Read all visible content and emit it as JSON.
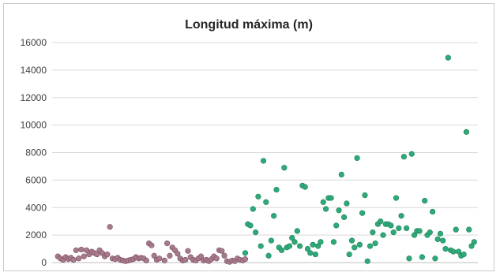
{
  "chart_data": {
    "type": "scatter",
    "title": "Longitud máxima (m)",
    "xlabel": "",
    "ylabel": "",
    "ylim": [
      0,
      16000
    ],
    "yticks": [
      0,
      2000,
      4000,
      6000,
      8000,
      10000,
      12000,
      14000,
      16000
    ],
    "xlim": [
      0,
      160
    ],
    "grid": true,
    "legend": "none",
    "series": [
      {
        "color": "#a87a8e",
        "edge_color": "#7a4e61",
        "points": [
          [
            1,
            450
          ],
          [
            2,
            300
          ],
          [
            3,
            200
          ],
          [
            4,
            400
          ],
          [
            5,
            250
          ],
          [
            6,
            350
          ],
          [
            7,
            200
          ],
          [
            8,
            900
          ],
          [
            9,
            300
          ],
          [
            10,
            950
          ],
          [
            11,
            450
          ],
          [
            12,
            900
          ],
          [
            13,
            600
          ],
          [
            14,
            800
          ],
          [
            15,
            700
          ],
          [
            16,
            600
          ],
          [
            17,
            900
          ],
          [
            18,
            700
          ],
          [
            19,
            450
          ],
          [
            20,
            600
          ],
          [
            21,
            2600
          ],
          [
            22,
            300
          ],
          [
            23,
            250
          ],
          [
            24,
            350
          ],
          [
            25,
            200
          ],
          [
            26,
            150
          ],
          [
            27,
            100
          ],
          [
            28,
            150
          ],
          [
            29,
            200
          ],
          [
            30,
            250
          ],
          [
            31,
            400
          ],
          [
            32,
            300
          ],
          [
            33,
            350
          ],
          [
            34,
            300
          ],
          [
            35,
            150
          ],
          [
            36,
            1400
          ],
          [
            37,
            1250
          ],
          [
            38,
            500
          ],
          [
            39,
            200
          ],
          [
            40,
            300
          ],
          [
            42,
            150
          ],
          [
            43,
            1400
          ],
          [
            44,
            500
          ],
          [
            45,
            1100
          ],
          [
            46,
            900
          ],
          [
            47,
            650
          ],
          [
            48,
            300
          ],
          [
            49,
            150
          ],
          [
            50,
            200
          ],
          [
            51,
            850
          ],
          [
            52,
            400
          ],
          [
            53,
            200
          ],
          [
            54,
            150
          ],
          [
            55,
            300
          ],
          [
            56,
            450
          ],
          [
            57,
            150
          ],
          [
            58,
            200
          ],
          [
            59,
            100
          ],
          [
            60,
            250
          ],
          [
            61,
            450
          ],
          [
            62,
            300
          ],
          [
            63,
            900
          ],
          [
            64,
            850
          ],
          [
            65,
            500
          ],
          [
            66,
            100
          ],
          [
            67,
            50
          ],
          [
            68,
            150
          ],
          [
            69,
            100
          ],
          [
            70,
            300
          ],
          [
            71,
            200
          ],
          [
            72,
            150
          ],
          [
            73,
            250
          ]
        ]
      },
      {
        "color": "#2eaa78",
        "edge_color": "#1d7f58",
        "points": [
          [
            73,
            700
          ],
          [
            74,
            2800
          ],
          [
            75,
            2700
          ],
          [
            76,
            3900
          ],
          [
            77,
            2200
          ],
          [
            78,
            4800
          ],
          [
            79,
            1200
          ],
          [
            80,
            7400
          ],
          [
            81,
            4400
          ],
          [
            82,
            500
          ],
          [
            83,
            1600
          ],
          [
            84,
            3400
          ],
          [
            85,
            5300
          ],
          [
            86,
            1100
          ],
          [
            87,
            900
          ],
          [
            88,
            6900
          ],
          [
            89,
            1100
          ],
          [
            90,
            1200
          ],
          [
            91,
            1800
          ],
          [
            92,
            1500
          ],
          [
            93,
            2300
          ],
          [
            94,
            1200
          ],
          [
            95,
            5600
          ],
          [
            96,
            5500
          ],
          [
            97,
            1000
          ],
          [
            98,
            700
          ],
          [
            99,
            1300
          ],
          [
            100,
            600
          ],
          [
            101,
            1200
          ],
          [
            102,
            1500
          ],
          [
            103,
            4400
          ],
          [
            104,
            3900
          ],
          [
            105,
            4700
          ],
          [
            106,
            4700
          ],
          [
            107,
            1500
          ],
          [
            108,
            2700
          ],
          [
            109,
            3800
          ],
          [
            110,
            6400
          ],
          [
            111,
            3300
          ],
          [
            112,
            4300
          ],
          [
            113,
            600
          ],
          [
            114,
            1600
          ],
          [
            115,
            1100
          ],
          [
            116,
            7600
          ],
          [
            117,
            1300
          ],
          [
            118,
            3600
          ],
          [
            119,
            4900
          ],
          [
            120,
            100
          ],
          [
            121,
            1200
          ],
          [
            122,
            2200
          ],
          [
            123,
            1400
          ],
          [
            124,
            2800
          ],
          [
            125,
            3000
          ],
          [
            126,
            2000
          ],
          [
            127,
            2800
          ],
          [
            128,
            2800
          ],
          [
            129,
            2700
          ],
          [
            130,
            2200
          ],
          [
            131,
            4700
          ],
          [
            132,
            2500
          ],
          [
            133,
            3400
          ],
          [
            134,
            7700
          ],
          [
            135,
            2500
          ],
          [
            136,
            300
          ],
          [
            137,
            7900
          ],
          [
            138,
            2000
          ],
          [
            139,
            2300
          ],
          [
            140,
            2300
          ],
          [
            141,
            400
          ],
          [
            142,
            4500
          ],
          [
            143,
            2000
          ],
          [
            144,
            2200
          ],
          [
            145,
            3700
          ],
          [
            146,
            300
          ],
          [
            147,
            1700
          ],
          [
            148,
            2100
          ],
          [
            149,
            1600
          ],
          [
            150,
            1000
          ],
          [
            151,
            14900
          ],
          [
            152,
            900
          ],
          [
            153,
            800
          ],
          [
            154,
            2400
          ],
          [
            155,
            800
          ],
          [
            156,
            500
          ],
          [
            157,
            600
          ],
          [
            158,
            9500
          ],
          [
            159,
            2400
          ],
          [
            160,
            1200
          ],
          [
            161,
            1500
          ]
        ]
      }
    ]
  }
}
